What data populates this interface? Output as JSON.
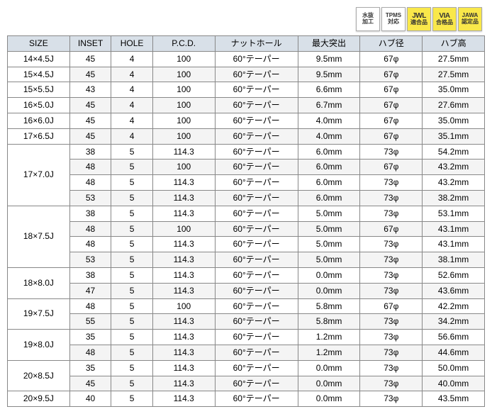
{
  "badges": [
    {
      "line1": "水抜",
      "line2": "加工",
      "style": "white"
    },
    {
      "line1": "TPMS",
      "line2": "対応",
      "style": "white"
    },
    {
      "line1": "JWL",
      "line2": "適合品",
      "style": "yellow",
      "big": true
    },
    {
      "line1": "VIA",
      "line2": "合格品",
      "style": "yellow",
      "big": true
    },
    {
      "line1": "JAWA",
      "line2": "認定品",
      "style": "yellow"
    }
  ],
  "columns": [
    "SIZE",
    "INSET",
    "HOLE",
    "P.C.D.",
    "ナットホール",
    "最大突出",
    "ハブ径",
    "ハブ高"
  ],
  "groups": [
    {
      "size": "14×4.5J",
      "rows": [
        {
          "inset": "45",
          "hole": "4",
          "pcd": "100",
          "nut": "60°テーパー",
          "max": "9.5mm",
          "hubd": "67φ",
          "hubh": "27.5mm"
        }
      ]
    },
    {
      "size": "15×4.5J",
      "rows": [
        {
          "inset": "45",
          "hole": "4",
          "pcd": "100",
          "nut": "60°テーパー",
          "max": "9.5mm",
          "hubd": "67φ",
          "hubh": "27.5mm"
        }
      ]
    },
    {
      "size": "15×5.5J",
      "rows": [
        {
          "inset": "43",
          "hole": "4",
          "pcd": "100",
          "nut": "60°テーパー",
          "max": "6.6mm",
          "hubd": "67φ",
          "hubh": "35.0mm"
        }
      ]
    },
    {
      "size": "16×5.0J",
      "rows": [
        {
          "inset": "45",
          "hole": "4",
          "pcd": "100",
          "nut": "60°テーパー",
          "max": "6.7mm",
          "hubd": "67φ",
          "hubh": "27.6mm"
        }
      ]
    },
    {
      "size": "16×6.0J",
      "rows": [
        {
          "inset": "45",
          "hole": "4",
          "pcd": "100",
          "nut": "60°テーパー",
          "max": "4.0mm",
          "hubd": "67φ",
          "hubh": "35.0mm"
        }
      ]
    },
    {
      "size": "17×6.5J",
      "rows": [
        {
          "inset": "45",
          "hole": "4",
          "pcd": "100",
          "nut": "60°テーパー",
          "max": "4.0mm",
          "hubd": "67φ",
          "hubh": "35.1mm"
        }
      ]
    },
    {
      "size": "17×7.0J",
      "rows": [
        {
          "inset": "38",
          "hole": "5",
          "pcd": "114.3",
          "nut": "60°テーパー",
          "max": "6.0mm",
          "hubd": "73φ",
          "hubh": "54.2mm"
        },
        {
          "inset": "48",
          "hole": "5",
          "pcd": "100",
          "nut": "60°テーパー",
          "max": "6.0mm",
          "hubd": "67φ",
          "hubh": "43.2mm"
        },
        {
          "inset": "48",
          "hole": "5",
          "pcd": "114.3",
          "nut": "60°テーパー",
          "max": "6.0mm",
          "hubd": "73φ",
          "hubh": "43.2mm"
        },
        {
          "inset": "53",
          "hole": "5",
          "pcd": "114.3",
          "nut": "60°テーパー",
          "max": "6.0mm",
          "hubd": "73φ",
          "hubh": "38.2mm"
        }
      ]
    },
    {
      "size": "18×7.5J",
      "rows": [
        {
          "inset": "38",
          "hole": "5",
          "pcd": "114.3",
          "nut": "60°テーパー",
          "max": "5.0mm",
          "hubd": "73φ",
          "hubh": "53.1mm"
        },
        {
          "inset": "48",
          "hole": "5",
          "pcd": "100",
          "nut": "60°テーパー",
          "max": "5.0mm",
          "hubd": "67φ",
          "hubh": "43.1mm"
        },
        {
          "inset": "48",
          "hole": "5",
          "pcd": "114.3",
          "nut": "60°テーパー",
          "max": "5.0mm",
          "hubd": "73φ",
          "hubh": "43.1mm"
        },
        {
          "inset": "53",
          "hole": "5",
          "pcd": "114.3",
          "nut": "60°テーパー",
          "max": "5.0mm",
          "hubd": "73φ",
          "hubh": "38.1mm"
        }
      ]
    },
    {
      "size": "18×8.0J",
      "rows": [
        {
          "inset": "38",
          "hole": "5",
          "pcd": "114.3",
          "nut": "60°テーパー",
          "max": "0.0mm",
          "hubd": "73φ",
          "hubh": "52.6mm"
        },
        {
          "inset": "47",
          "hole": "5",
          "pcd": "114.3",
          "nut": "60°テーパー",
          "max": "0.0mm",
          "hubd": "73φ",
          "hubh": "43.6mm"
        }
      ]
    },
    {
      "size": "19×7.5J",
      "rows": [
        {
          "inset": "48",
          "hole": "5",
          "pcd": "100",
          "nut": "60°テーパー",
          "max": "5.8mm",
          "hubd": "67φ",
          "hubh": "42.2mm"
        },
        {
          "inset": "55",
          "hole": "5",
          "pcd": "114.3",
          "nut": "60°テーパー",
          "max": "5.8mm",
          "hubd": "73φ",
          "hubh": "34.2mm"
        }
      ]
    },
    {
      "size": "19×8.0J",
      "rows": [
        {
          "inset": "35",
          "hole": "5",
          "pcd": "114.3",
          "nut": "60°テーパー",
          "max": "1.2mm",
          "hubd": "73φ",
          "hubh": "56.6mm"
        },
        {
          "inset": "48",
          "hole": "5",
          "pcd": "114.3",
          "nut": "60°テーパー",
          "max": "1.2mm",
          "hubd": "73φ",
          "hubh": "44.6mm"
        }
      ]
    },
    {
      "size": "20×8.5J",
      "rows": [
        {
          "inset": "35",
          "hole": "5",
          "pcd": "114.3",
          "nut": "60°テーパー",
          "max": "0.0mm",
          "hubd": "73φ",
          "hubh": "50.0mm"
        },
        {
          "inset": "45",
          "hole": "5",
          "pcd": "114.3",
          "nut": "60°テーパー",
          "max": "0.0mm",
          "hubd": "73φ",
          "hubh": "40.0mm"
        }
      ]
    },
    {
      "size": "20×9.5J",
      "rows": [
        {
          "inset": "40",
          "hole": "5",
          "pcd": "114.3",
          "nut": "60°テーパー",
          "max": "0.0mm",
          "hubd": "73φ",
          "hubh": "43.5mm"
        }
      ]
    }
  ]
}
